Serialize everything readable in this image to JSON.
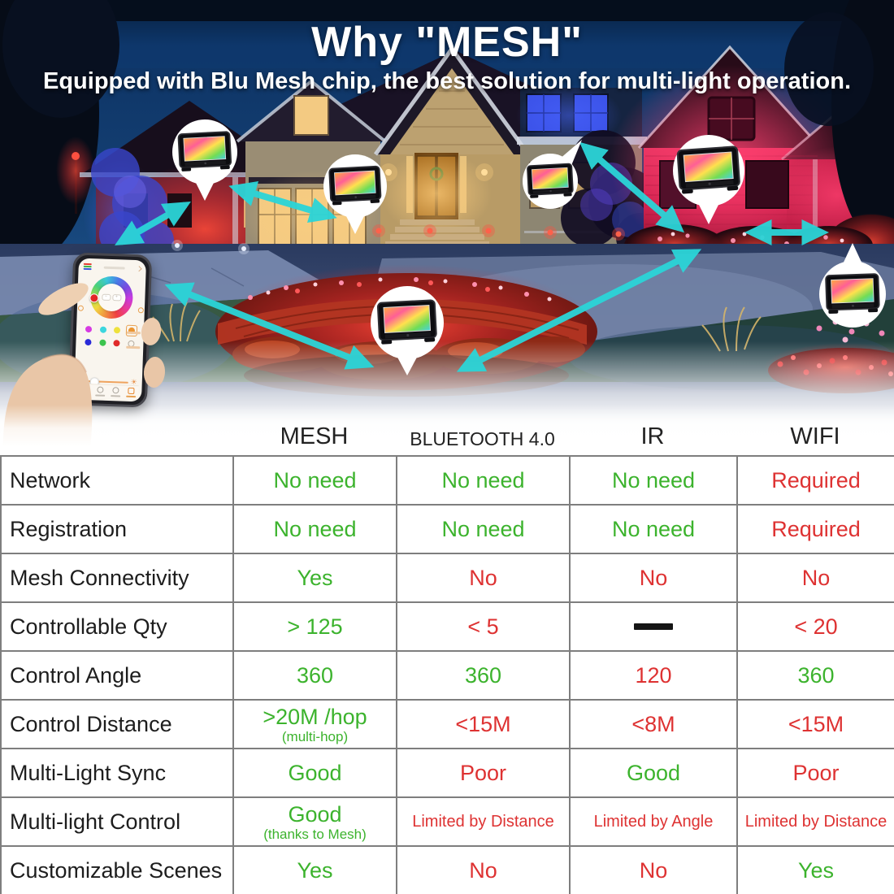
{
  "chart_data": {
    "type": "table",
    "title": "Why \"MESH\"",
    "subtitle": "Equipped with Blu Mesh chip, the best solution for multi-light operation.",
    "columns": [
      "",
      "MESH",
      "BLUETOOTH 4.0",
      "IR",
      "WIFI"
    ],
    "rows": [
      {
        "label": "Network",
        "cells": [
          {
            "text": "No need",
            "status": "good"
          },
          {
            "text": "No need",
            "status": "good"
          },
          {
            "text": "No need",
            "status": "good"
          },
          {
            "text": "Required",
            "status": "bad"
          }
        ]
      },
      {
        "label": "Registration",
        "cells": [
          {
            "text": "No need",
            "status": "good"
          },
          {
            "text": "No need",
            "status": "good"
          },
          {
            "text": "No need",
            "status": "good"
          },
          {
            "text": "Required",
            "status": "bad"
          }
        ]
      },
      {
        "label": "Mesh Connectivity",
        "cells": [
          {
            "text": "Yes",
            "status": "good"
          },
          {
            "text": "No",
            "status": "bad"
          },
          {
            "text": "No",
            "status": "bad"
          },
          {
            "text": "No",
            "status": "bad"
          }
        ]
      },
      {
        "label": "Controllable Qty",
        "cells": [
          {
            "text": "> 125",
            "status": "good"
          },
          {
            "text": "< 5",
            "status": "bad"
          },
          {
            "text": "—",
            "status": "dash"
          },
          {
            "text": "< 20",
            "status": "bad"
          }
        ]
      },
      {
        "label": "Control Angle",
        "cells": [
          {
            "text": "360",
            "status": "good"
          },
          {
            "text": "360",
            "status": "good"
          },
          {
            "text": "120",
            "status": "bad"
          },
          {
            "text": "360",
            "status": "good"
          }
        ]
      },
      {
        "label": "Control Distance",
        "cells": [
          {
            "text": ">20M /hop",
            "sub": "(multi-hop)",
            "status": "good"
          },
          {
            "text": "<15M",
            "status": "bad"
          },
          {
            "text": "<8M",
            "status": "bad"
          },
          {
            "text": "<15M",
            "status": "bad"
          }
        ]
      },
      {
        "label": "Multi-Light Sync",
        "cells": [
          {
            "text": "Good",
            "status": "good"
          },
          {
            "text": "Poor",
            "status": "bad"
          },
          {
            "text": "Good",
            "status": "good"
          },
          {
            "text": "Poor",
            "status": "bad"
          }
        ]
      },
      {
        "label": "Multi-light Control",
        "cells": [
          {
            "text": "Good",
            "sub": "(thanks to Mesh)",
            "status": "good"
          },
          {
            "text": "Limited by Distance",
            "status": "bad",
            "small": true
          },
          {
            "text": "Limited by Angle",
            "status": "bad",
            "small": true
          },
          {
            "text": "Limited by Distance",
            "status": "bad",
            "small": true
          }
        ]
      },
      {
        "label": "Customizable Scenes",
        "cells": [
          {
            "text": "Yes",
            "status": "good"
          },
          {
            "text": "No",
            "status": "bad"
          },
          {
            "text": "No",
            "status": "bad"
          },
          {
            "text": "Yes",
            "status": "good"
          }
        ]
      }
    ]
  },
  "colors": {
    "good": "#3cb32d",
    "bad": "#de3232",
    "arrow": "#2bd5d8",
    "table_border": "#7e7e7e",
    "header_text": "#222222",
    "title_text": "#ffffff"
  },
  "icons": [
    "floodlight-icon",
    "double-arrow-icon",
    "rgb-stripes-icon",
    "color-wheel-icon",
    "color-swatch-dot",
    "brightness-slider",
    "sun-icon",
    "hand-holding-phone"
  ]
}
